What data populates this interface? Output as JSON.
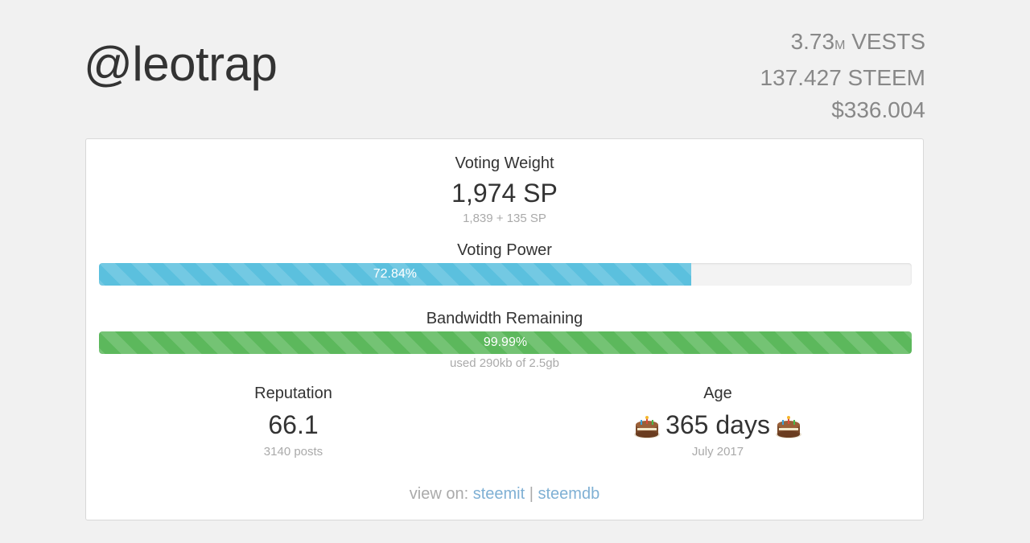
{
  "header": {
    "username": "@leotrap",
    "vests_value": "3.73",
    "vests_unit_prefix": "M",
    "vests_label": "VESTS",
    "steem": "137.427 STEEM",
    "usd": "$336.004"
  },
  "voting_weight": {
    "label": "Voting Weight",
    "value": "1,974 SP",
    "breakdown": "1,839 + 135 SP"
  },
  "voting_power": {
    "label": "Voting Power",
    "percent_text": "72.84%",
    "percent": 72.84,
    "color": "#5bc0de"
  },
  "bandwidth": {
    "label": "Bandwidth Remaining",
    "percent_text": "99.99%",
    "percent": 99.99,
    "usage": "used 290kb of 2.5gb",
    "color": "#5cb85c"
  },
  "reputation": {
    "label": "Reputation",
    "value": "66.1",
    "posts": "3140 posts"
  },
  "age": {
    "label": "Age",
    "value": "365 days",
    "since": "July 2017",
    "icon": "birthday-cake-icon"
  },
  "links": {
    "prefix": "view on:",
    "steemit": "steemit",
    "separator": "|",
    "steemdb": "steemdb"
  }
}
